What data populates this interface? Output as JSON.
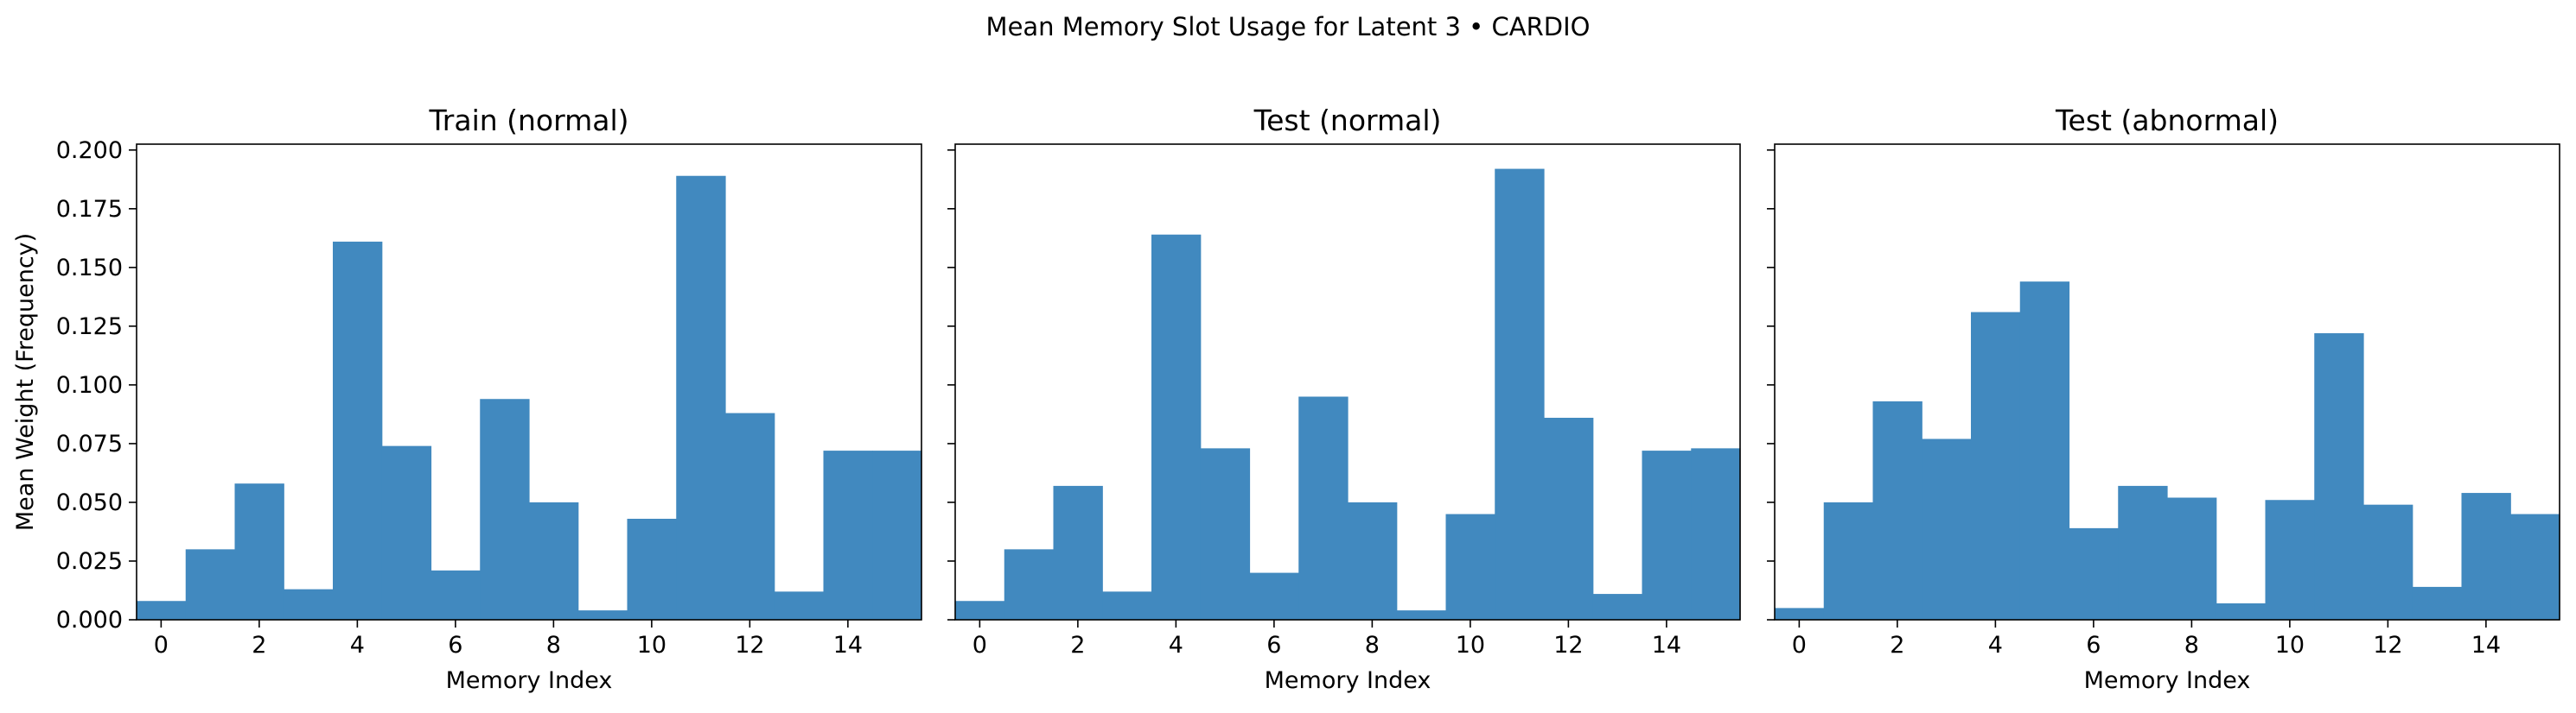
{
  "figure": {
    "suptitle": "Mean Memory Slot Usage for Latent 3 • CARDIO",
    "bar_color": "#4189bf",
    "ylabel": "Mean Weight (Frequency)"
  },
  "chart_data": [
    {
      "type": "bar",
      "title": "Train (normal)",
      "xlabel": "Memory Index",
      "ylabel": "Mean Weight (Frequency)",
      "categories": [
        0,
        1,
        2,
        3,
        4,
        5,
        6,
        7,
        8,
        9,
        10,
        11,
        12,
        13,
        14,
        15
      ],
      "values": [
        0.008,
        0.03,
        0.058,
        0.013,
        0.161,
        0.074,
        0.021,
        0.094,
        0.05,
        0.004,
        0.043,
        0.189,
        0.088,
        0.012,
        0.072,
        0.072
      ],
      "xlim": [
        -0.5,
        15.5
      ],
      "ylim": [
        0,
        0.2025
      ],
      "xticks": [
        0,
        2,
        4,
        6,
        8,
        10,
        12,
        14
      ],
      "yticks": [
        "0.000",
        "0.025",
        "0.050",
        "0.075",
        "0.100",
        "0.125",
        "0.150",
        "0.175",
        "0.200"
      ],
      "grid": false
    },
    {
      "type": "bar",
      "title": "Test (normal)",
      "xlabel": "Memory Index",
      "ylabel": "",
      "categories": [
        0,
        1,
        2,
        3,
        4,
        5,
        6,
        7,
        8,
        9,
        10,
        11,
        12,
        13,
        14,
        15
      ],
      "values": [
        0.008,
        0.03,
        0.057,
        0.012,
        0.164,
        0.073,
        0.02,
        0.095,
        0.05,
        0.004,
        0.045,
        0.192,
        0.086,
        0.011,
        0.072,
        0.073
      ],
      "xlim": [
        -0.5,
        15.5
      ],
      "ylim": [
        0,
        0.2025
      ],
      "xticks": [
        0,
        2,
        4,
        6,
        8,
        10,
        12,
        14
      ],
      "yticks": [
        "0.000",
        "0.025",
        "0.050",
        "0.075",
        "0.100",
        "0.125",
        "0.150",
        "0.175",
        "0.200"
      ],
      "grid": false
    },
    {
      "type": "bar",
      "title": "Test (abnormal)",
      "xlabel": "Memory Index",
      "ylabel": "",
      "categories": [
        0,
        1,
        2,
        3,
        4,
        5,
        6,
        7,
        8,
        9,
        10,
        11,
        12,
        13,
        14,
        15
      ],
      "values": [
        0.005,
        0.05,
        0.093,
        0.077,
        0.131,
        0.144,
        0.039,
        0.057,
        0.052,
        0.007,
        0.051,
        0.122,
        0.049,
        0.014,
        0.054,
        0.045
      ],
      "xlim": [
        -0.5,
        15.5
      ],
      "ylim": [
        0,
        0.2025
      ],
      "xticks": [
        0,
        2,
        4,
        6,
        8,
        10,
        12,
        14
      ],
      "yticks": [
        "0.000",
        "0.025",
        "0.050",
        "0.075",
        "0.100",
        "0.125",
        "0.150",
        "0.175",
        "0.200"
      ],
      "grid": false
    }
  ]
}
